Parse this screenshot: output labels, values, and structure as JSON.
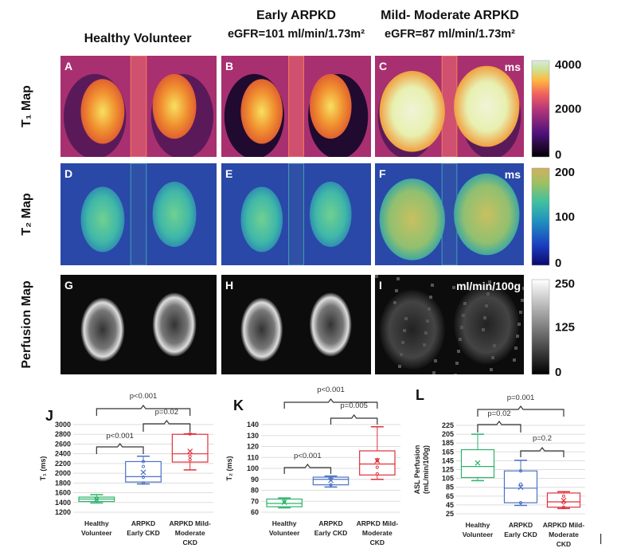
{
  "columns": [
    {
      "title": "Healthy Volunteer",
      "subtitle": ""
    },
    {
      "title": "Early ARPKD",
      "subtitle": "eGFR=101 ml/min/1.73m²"
    },
    {
      "title": "Mild- Moderate ARPKD",
      "subtitle": "eGFR=87 ml/min/1.73m²"
    }
  ],
  "rows": [
    {
      "label": "T₁ Map",
      "panels": [
        "A",
        "B",
        "C"
      ],
      "unit": "ms",
      "colorbar_ticks": [
        "4000",
        "2000",
        "0"
      ],
      "colormap": "magma"
    },
    {
      "label": "T₂ Map",
      "panels": [
        "D",
        "E",
        "F"
      ],
      "unit": "ms",
      "colorbar_ticks": [
        "200",
        "100",
        "0"
      ],
      "colormap": "viridis-like"
    },
    {
      "label": "Perfusion Map",
      "panels": [
        "G",
        "H",
        "I"
      ],
      "unit": "ml/min/100g",
      "colorbar_ticks": [
        "250",
        "125",
        "0"
      ],
      "colormap": "gray"
    }
  ],
  "colors": {
    "healthy": "#2db36b",
    "early": "#4a72c4",
    "moderate": "#e0303a"
  },
  "chart_data": [
    {
      "type": "box",
      "panel": "J",
      "ylabel": "T₁ (ms)",
      "ylim": [
        1200,
        3000
      ],
      "ytick_step": 200,
      "grid": true,
      "categories": [
        [
          "Healthy",
          "Volunteer"
        ],
        [
          "ARPKD",
          "Early CKD"
        ],
        [
          "ARPKD Mild-",
          "Moderate",
          "CKD"
        ]
      ],
      "boxes": [
        {
          "min": 1390,
          "q1": 1420,
          "median": 1470,
          "q3": 1510,
          "max": 1560,
          "mean": 1460,
          "points": [
            1450,
            1480
          ]
        },
        {
          "min": 1780,
          "q1": 1820,
          "median": 1930,
          "q3": 2240,
          "max": 2350,
          "mean": 2020,
          "points": [
            1800,
            1920,
            2140,
            2240
          ]
        },
        {
          "min": 2070,
          "q1": 2230,
          "median": 2400,
          "q3": 2800,
          "max": 2810,
          "mean": 2450,
          "points": [
            2280,
            2350,
            2810
          ]
        }
      ],
      "comparisons": [
        {
          "pair": [
            0,
            1
          ],
          "p": "p<0.001"
        },
        {
          "pair": [
            1,
            2
          ],
          "p": "p=0.02"
        },
        {
          "pair": [
            0,
            2
          ],
          "p": "p<0.001"
        }
      ]
    },
    {
      "type": "box",
      "panel": "K",
      "ylabel": "T₂ (ms)",
      "ylim": [
        60,
        140
      ],
      "ytick_step": 10,
      "grid": true,
      "categories": [
        [
          "Healthy",
          "Volunteer"
        ],
        [
          "ARPKD",
          "Early CKD"
        ],
        [
          "ARPKD Mild-",
          "Moderate",
          "CKD"
        ]
      ],
      "boxes": [
        {
          "min": 64,
          "q1": 65,
          "median": 68,
          "q3": 72,
          "max": 73,
          "mean": 69,
          "points": [
            69,
            70
          ]
        },
        {
          "min": 83,
          "q1": 85,
          "median": 90,
          "q3": 92,
          "max": 93,
          "mean": 89,
          "points": [
            85,
            90,
            92
          ]
        },
        {
          "min": 90,
          "q1": 94,
          "median": 104,
          "q3": 116,
          "max": 138,
          "mean": 107,
          "points": [
            95,
            101,
            107,
            108
          ]
        }
      ],
      "comparisons": [
        {
          "pair": [
            0,
            1
          ],
          "p": "p<0.001"
        },
        {
          "pair": [
            1,
            2
          ],
          "p": "p=0.005"
        },
        {
          "pair": [
            0,
            2
          ],
          "p": "p<0.001"
        }
      ]
    },
    {
      "type": "box",
      "panel": "L",
      "ylabel": [
        "ASL Perfusion",
        "(mL/min/100g)"
      ],
      "ylim": [
        25,
        225
      ],
      "ytick_step": 20,
      "grid": true,
      "categories": [
        [
          "Healthy",
          "Volunteer"
        ],
        [
          "ARPKD",
          "Early CKD"
        ],
        [
          "ARPKD Mild-",
          "Moderate",
          "CKD"
        ]
      ],
      "boxes": [
        {
          "min": 100,
          "q1": 107,
          "median": 132,
          "q3": 170,
          "max": 205,
          "mean": 140,
          "points": []
        },
        {
          "min": 44,
          "q1": 50,
          "median": 83,
          "q3": 122,
          "max": 146,
          "mean": 85,
          "points": [
            50,
            92,
            122
          ]
        },
        {
          "min": 37,
          "q1": 40,
          "median": 52,
          "q3": 72,
          "max": 75,
          "mean": 55,
          "points": [
            40,
            50,
            65
          ]
        }
      ],
      "comparisons": [
        {
          "pair": [
            0,
            1
          ],
          "p": "p=0.02"
        },
        {
          "pair": [
            1,
            2
          ],
          "p": "p=0.2"
        },
        {
          "pair": [
            0,
            2
          ],
          "p": "p=0.001"
        }
      ]
    }
  ]
}
